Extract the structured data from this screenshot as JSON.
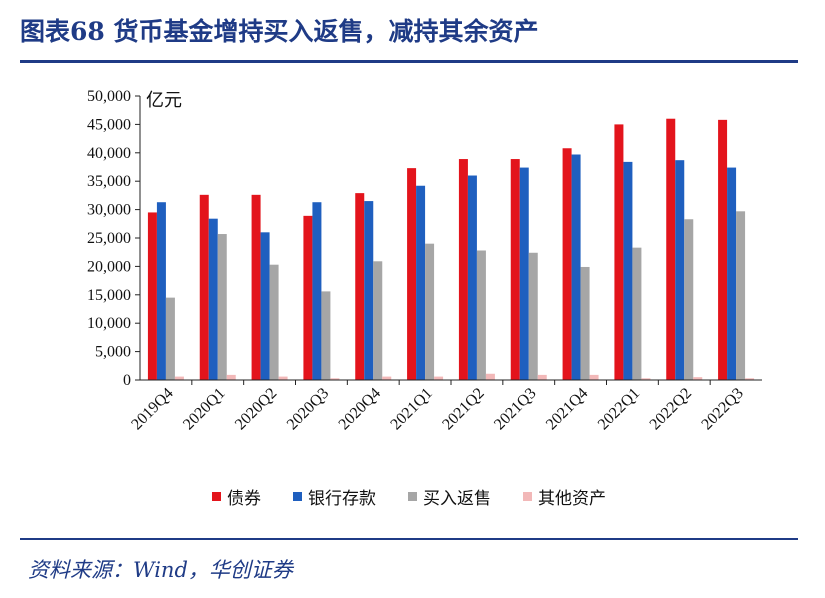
{
  "header": {
    "title": "图表68  货币基金增持买入返售，减持其余资产"
  },
  "footer": {
    "source": "资料来源：Wind，华创证券"
  },
  "chart_data": {
    "type": "bar",
    "title": "",
    "unit": "亿元",
    "ylim": [
      0,
      50000
    ],
    "yticks": [
      0,
      5000,
      10000,
      15000,
      20000,
      25000,
      30000,
      35000,
      40000,
      45000,
      50000
    ],
    "ytick_labels": [
      "0",
      "5,000",
      "10,000",
      "15,000",
      "20,000",
      "25,000",
      "30,000",
      "35,000",
      "40,000",
      "45,000",
      "50,000"
    ],
    "categories": [
      "2019Q4",
      "2020Q1",
      "2020Q2",
      "2020Q3",
      "2020Q4",
      "2021Q1",
      "2021Q2",
      "2021Q3",
      "2021Q4",
      "2022Q1",
      "2022Q2",
      "2022Q3"
    ],
    "series": [
      {
        "name": "债券",
        "color": "#e3141c",
        "values": [
          29500,
          32600,
          32600,
          28900,
          32900,
          37300,
          38900,
          38900,
          40800,
          45000,
          46000,
          45800
        ]
      },
      {
        "name": "银行存款",
        "color": "#1f5fbf",
        "values": [
          31300,
          28400,
          26000,
          31300,
          31500,
          34200,
          36000,
          37400,
          39700,
          38400,
          38700,
          37400
        ]
      },
      {
        "name": "买入返售",
        "color": "#a6a6a6",
        "values": [
          14500,
          25700,
          20300,
          15600,
          20900,
          24000,
          22800,
          22400,
          19900,
          23300,
          28300,
          29700
        ]
      },
      {
        "name": "其他资产",
        "color": "#f2b8b8",
        "values": [
          600,
          900,
          600,
          300,
          600,
          600,
          1100,
          900,
          900,
          300,
          500,
          300
        ]
      }
    ],
    "legend_position": "bottom",
    "grid": false
  }
}
